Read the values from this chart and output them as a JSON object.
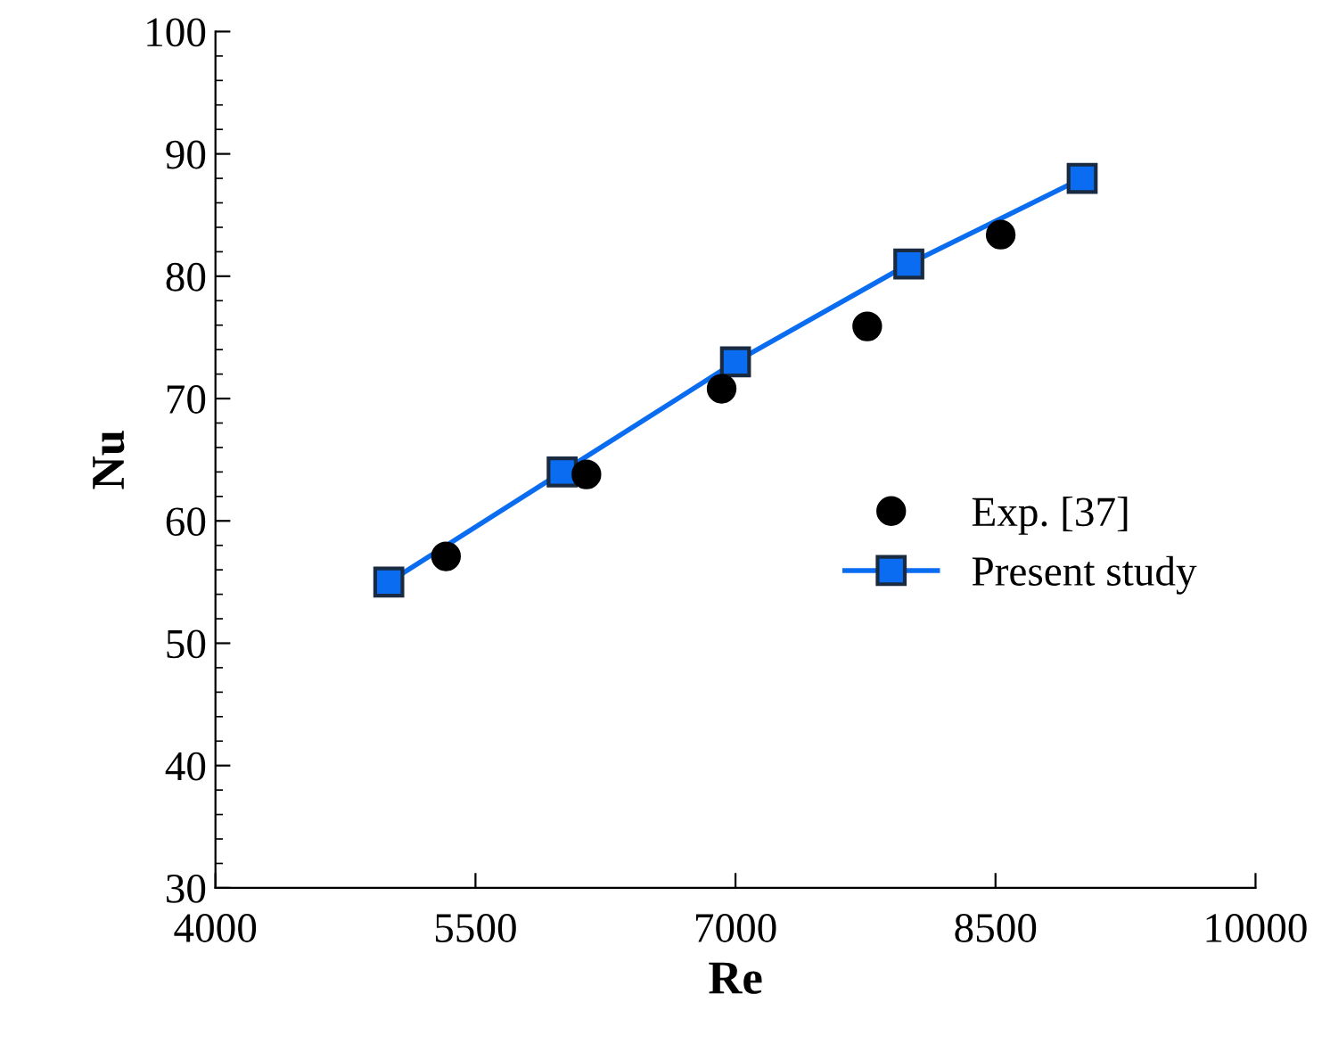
{
  "chart_data": {
    "type": "line",
    "xlabel": "Re",
    "ylabel": "Nu",
    "xlim": [
      4000,
      10000
    ],
    "xticks": [
      4000,
      5500,
      7000,
      8500,
      10000
    ],
    "ylim": [
      30,
      100
    ],
    "yticks": [
      30,
      40,
      50,
      60,
      70,
      80,
      90,
      100
    ],
    "grid": false,
    "legend": "right",
    "series": [
      {
        "name": "Exp. [37]",
        "type": "scatter",
        "marker": "circle",
        "color": "#000000",
        "x": [
          5330,
          6140,
          6920,
          7760,
          8530
        ],
        "values": [
          57.1,
          63.8,
          70.8,
          75.9,
          83.4
        ]
      },
      {
        "name": "Present study",
        "marker": "square",
        "line_style": "solid",
        "color": "#0a6cf0",
        "x": [
          5000,
          6000,
          7000,
          8000,
          9000
        ],
        "values": [
          55,
          64,
          73,
          81,
          88
        ]
      }
    ]
  }
}
